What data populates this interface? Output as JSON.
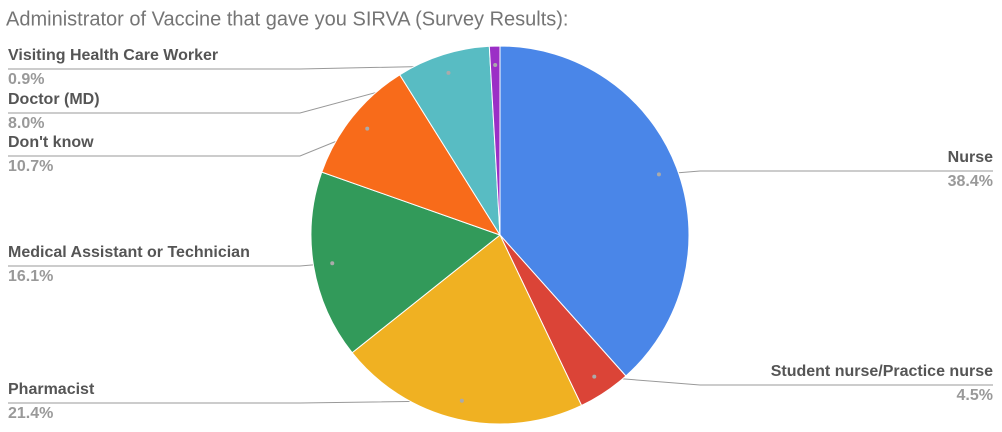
{
  "chart_data": {
    "type": "pie",
    "title": "Administrator of Vaccine that gave you SIRVA (Survey Results):",
    "categories": [
      "Nurse",
      "Student nurse/Practice nurse",
      "Pharmacist",
      "Medical Assistant or Technician",
      "Don't know",
      "Doctor (MD)",
      "Visiting Health Care Worker"
    ],
    "values": [
      38.4,
      4.5,
      21.4,
      16.1,
      10.7,
      8.0,
      0.9
    ],
    "value_labels": [
      "38.4%",
      "4.5%",
      "21.4%",
      "16.1%",
      "10.7%",
      "8.0%",
      "0.9%"
    ],
    "colors": [
      "#4a86e8",
      "#db4437",
      "#f0b122",
      "#329a5a",
      "#f86b1a",
      "#58bcc3",
      "#9b2fc6"
    ]
  }
}
